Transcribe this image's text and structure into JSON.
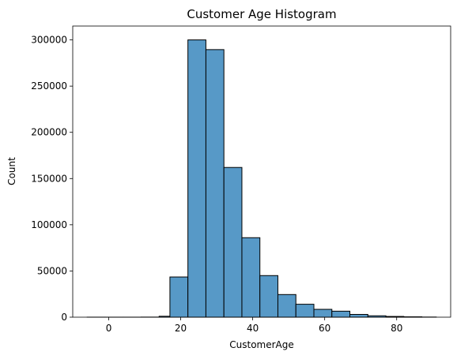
{
  "chart_data": {
    "type": "bar",
    "title": "Customer Age Histogram",
    "xlabel": "CustomerAge",
    "ylabel": "Count",
    "xlim": [
      -10,
      95
    ],
    "ylim": [
      0,
      315000
    ],
    "xticks": [
      0,
      20,
      40,
      60,
      80
    ],
    "yticks": [
      0,
      50000,
      100000,
      150000,
      200000,
      250000,
      300000
    ],
    "grid": false,
    "bar_color": "#5799c7",
    "edge_color": "#000000",
    "bins": [
      {
        "x0": -6,
        "x1": -1,
        "count": 30
      },
      {
        "x0": -1,
        "x1": 4,
        "count": 20
      },
      {
        "x0": 4,
        "x1": 9,
        "count": 20
      },
      {
        "x0": 9,
        "x1": 14,
        "count": 100
      },
      {
        "x0": 14,
        "x1": 17,
        "count": 1000
      },
      {
        "x0": 17,
        "x1": 22,
        "count": 43500
      },
      {
        "x0": 22,
        "x1": 27,
        "count": 300000
      },
      {
        "x0": 27,
        "x1": 32,
        "count": 289500
      },
      {
        "x0": 32,
        "x1": 37,
        "count": 162000
      },
      {
        "x0": 37,
        "x1": 42,
        "count": 86000
      },
      {
        "x0": 42,
        "x1": 47,
        "count": 45000
      },
      {
        "x0": 47,
        "x1": 52,
        "count": 24500
      },
      {
        "x0": 52,
        "x1": 57,
        "count": 14000
      },
      {
        "x0": 57,
        "x1": 62,
        "count": 8500
      },
      {
        "x0": 62,
        "x1": 67,
        "count": 6500
      },
      {
        "x0": 67,
        "x1": 72,
        "count": 3000
      },
      {
        "x0": 72,
        "x1": 77,
        "count": 1500
      },
      {
        "x0": 77,
        "x1": 82,
        "count": 800
      },
      {
        "x0": 82,
        "x1": 87,
        "count": 400
      },
      {
        "x0": 87,
        "x1": 91,
        "count": 150
      }
    ]
  }
}
